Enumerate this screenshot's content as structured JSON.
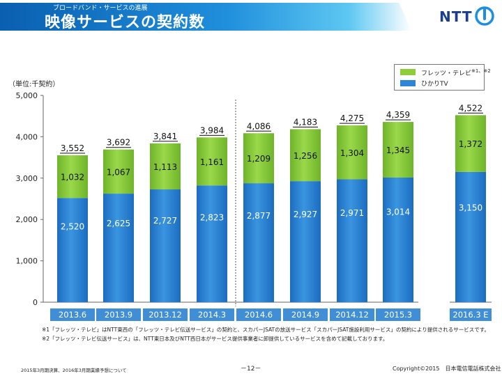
{
  "header": {
    "subtitle": "ブロードバンド・サービスの進展",
    "title": "映像サービスの契約数",
    "logo_text": "NTT"
  },
  "colors": {
    "flets_tv": "#8fce3a",
    "hikari_tv": "#2f86d6",
    "category_box": "#3f8ed6"
  },
  "chart_data": {
    "type": "bar",
    "stacked": true,
    "unit_label": "（単位:千契約）",
    "categories": [
      "2013.6",
      "2013.9",
      "2013.12",
      "2014.3",
      "2014.6",
      "2014.9",
      "2014.12",
      "2015.3",
      "2016.3 E"
    ],
    "series": [
      {
        "name": "ひかりTV",
        "values": [
          2520,
          2625,
          2727,
          2823,
          2877,
          2927,
          2971,
          3014,
          3150
        ]
      },
      {
        "name": "フレッツ・テレビ",
        "values": [
          1032,
          1067,
          1113,
          1161,
          1209,
          1256,
          1304,
          1345,
          1372
        ]
      }
    ],
    "totals": [
      3552,
      3692,
      3841,
      3984,
      4086,
      4183,
      4275,
      4359,
      4522
    ],
    "labels": {
      "totals": [
        "3,552",
        "3,692",
        "3,841",
        "3,984",
        "4,086",
        "4,183",
        "4,275",
        "4,359",
        "4,522"
      ],
      "hikari_tv": [
        "2,520",
        "2,625",
        "2,727",
        "2,823",
        "2,877",
        "2,927",
        "2,971",
        "3,014",
        "3,150"
      ],
      "flets_tv": [
        "1,032",
        "1,067",
        "1,113",
        "1,161",
        "1,209",
        "1,256",
        "1,304",
        "1,345",
        "1,372"
      ]
    },
    "yticks": [
      0,
      1000,
      2000,
      3000,
      4000,
      5000
    ],
    "ytick_labels": [
      "0",
      "1,000",
      "2,000",
      "3,000",
      "4,000",
      "5,000"
    ],
    "ylim": [
      0,
      5000
    ],
    "grid": false,
    "legend": {
      "placement": "top-right",
      "flets_label": "フレッツ・テレビ",
      "flets_sup": "※1、※2",
      "hikari_label": "ひかりTV"
    }
  },
  "notes": {
    "note1": "※1「フレッツ・テレビ」はNTT東西の「フレッツ・テレビ伝送サービス」の契約と、スカパーJSATの放送サービス「スカパーJSAT施設利用サービス」の契約により提供されるサービスです。",
    "note2": "※2「フレッツ・テレビ伝送サービス」は、NTT東日本及びNTT西日本がサービス提供事業者に卸提供しているサービスを含めて記載しております。"
  },
  "footer": {
    "left": "2015年3月期決算、2016年3月期業績予想について",
    "page": "－12－",
    "copyright": "Copyright©2015　日本電信電話株式会社"
  }
}
